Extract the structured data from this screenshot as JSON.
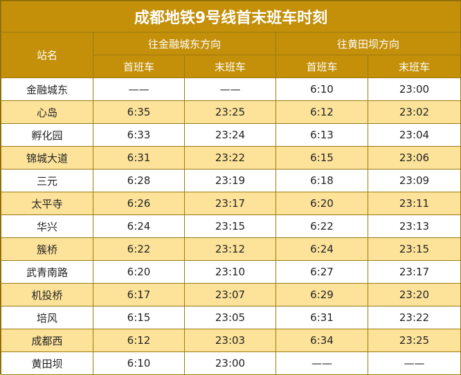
{
  "title": "成都地铁9号线首末班车时刻",
  "header": {
    "station": "站名",
    "dir1": "往金融城东方向",
    "dir2": "往黄田坝方向",
    "first": "首班车",
    "last": "末班车"
  },
  "rows": [
    {
      "station": "金融城东",
      "d1_first": "——",
      "d1_last": "——",
      "d2_first": "6:10",
      "d2_last": "23:00"
    },
    {
      "station": "心岛",
      "d1_first": "6:35",
      "d1_last": "23:25",
      "d2_first": "6:12",
      "d2_last": "23:02"
    },
    {
      "station": "孵化园",
      "d1_first": "6:33",
      "d1_last": "23:24",
      "d2_first": "6:13",
      "d2_last": "23:04"
    },
    {
      "station": "锦城大道",
      "d1_first": "6:31",
      "d1_last": "23:22",
      "d2_first": "6:15",
      "d2_last": "23:06"
    },
    {
      "station": "三元",
      "d1_first": "6:28",
      "d1_last": "23:19",
      "d2_first": "6:18",
      "d2_last": "23:09"
    },
    {
      "station": "太平寺",
      "d1_first": "6:26",
      "d1_last": "23:17",
      "d2_first": "6:20",
      "d2_last": "23:11"
    },
    {
      "station": "华兴",
      "d1_first": "6:24",
      "d1_last": "23:15",
      "d2_first": "6:22",
      "d2_last": "23:13"
    },
    {
      "station": "簇桥",
      "d1_first": "6:22",
      "d1_last": "23:12",
      "d2_first": "6:24",
      "d2_last": "23:15"
    },
    {
      "station": "武青南路",
      "d1_first": "6:20",
      "d1_last": "23:10",
      "d2_first": "6:27",
      "d2_last": "23:17"
    },
    {
      "station": "机投桥",
      "d1_first": "6:17",
      "d1_last": "23:07",
      "d2_first": "6:29",
      "d2_last": "23:20"
    },
    {
      "station": "培风",
      "d1_first": "6:15",
      "d1_last": "23:05",
      "d2_first": "6:31",
      "d2_last": "23:22"
    },
    {
      "station": "成都西",
      "d1_first": "6:12",
      "d1_last": "23:03",
      "d2_first": "6:34",
      "d2_last": "23:25"
    },
    {
      "station": "黄田坝",
      "d1_first": "6:10",
      "d1_last": "23:00",
      "d2_first": "——",
      "d2_last": "——"
    }
  ],
  "colors": {
    "header_bg": "#c4900a",
    "alt_row_bg": "#fde39a",
    "row_bg": "#ffffff"
  }
}
